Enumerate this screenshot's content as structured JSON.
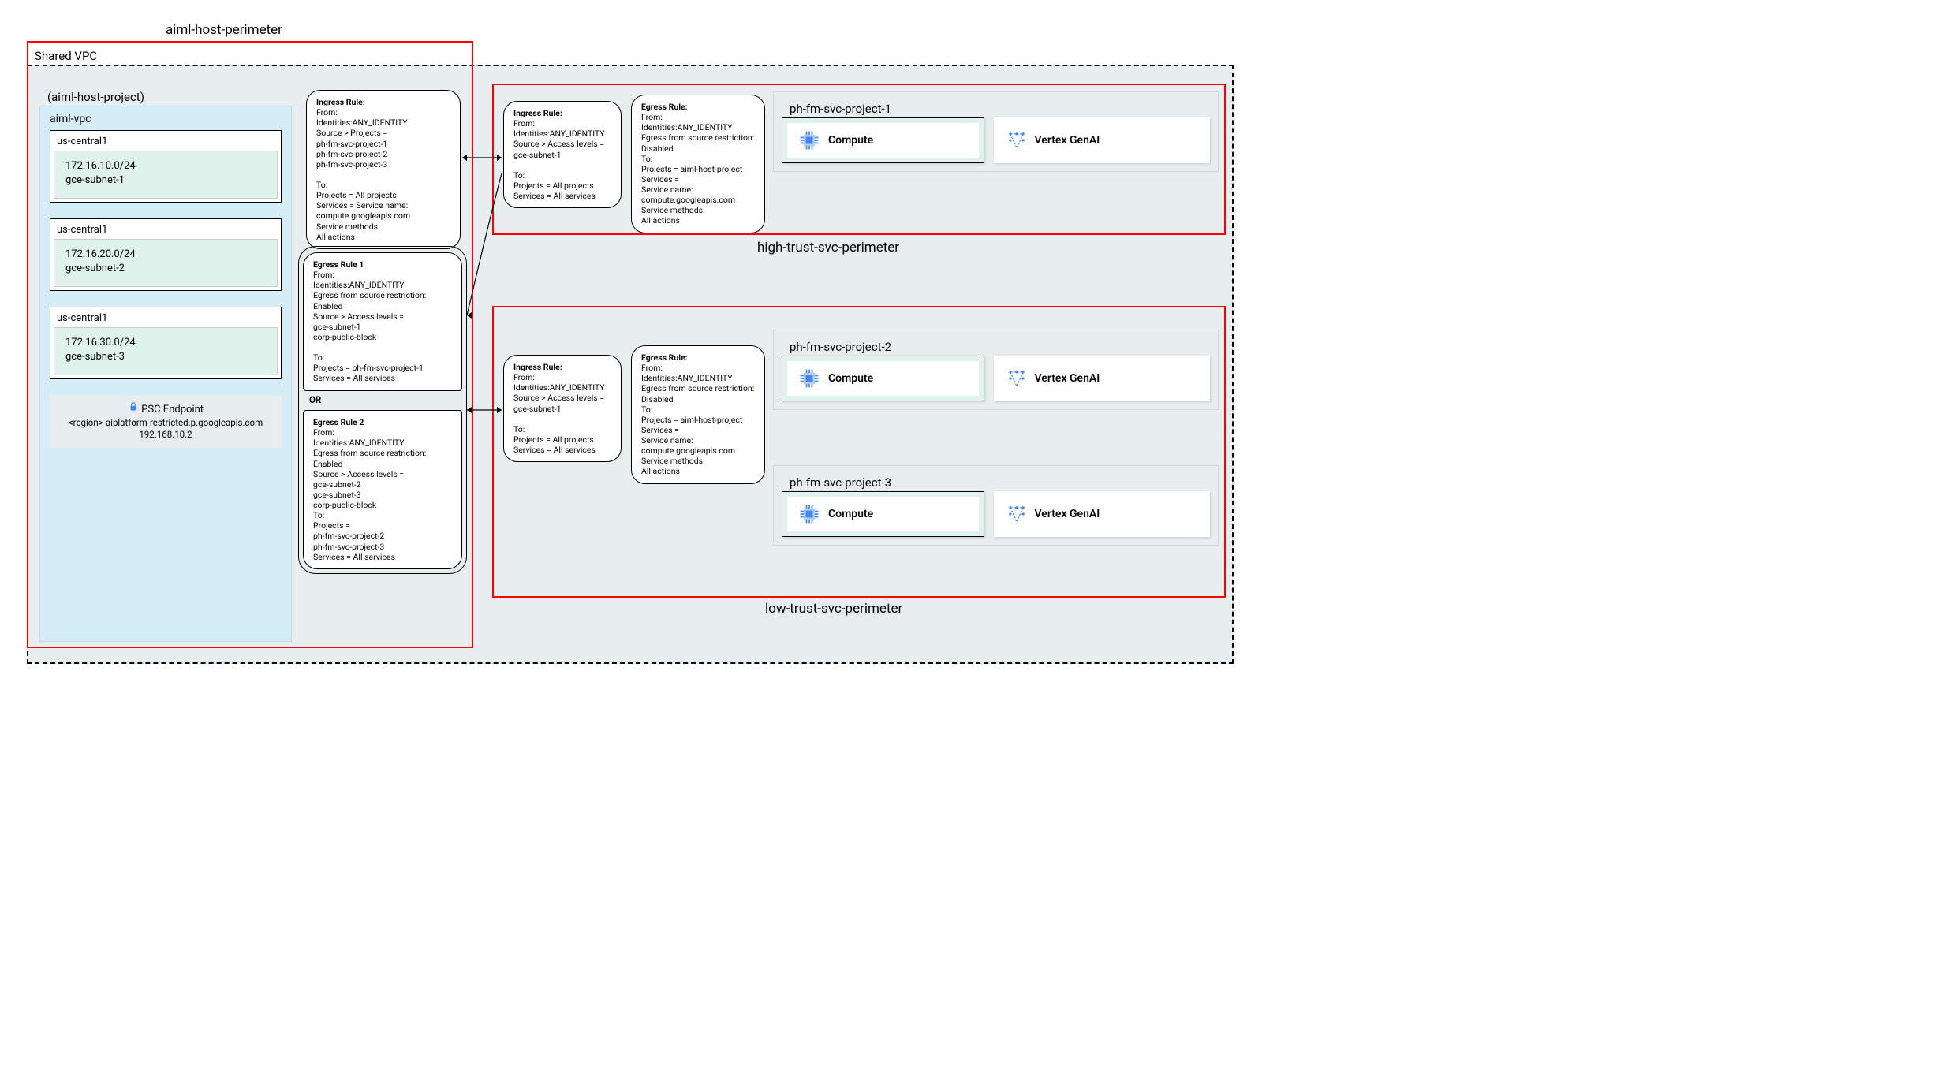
{
  "labels": {
    "aiml_host_perimeter": "aiml-host-perimeter",
    "high_trust_perimeter": "high-trust-svc-perimeter",
    "low_trust_perimeter": "low-trust-svc-perimeter",
    "shared_vpc": "Shared VPC",
    "aiml_host_project": "(aiml-host-project)",
    "aiml_vpc": "aiml-vpc",
    "compute": "Compute",
    "vertex": "Vertex GenAI",
    "psc_title": "PSC Endpoint",
    "psc_host": "<region>-aiplatform-restricted.p.googleapis.com",
    "psc_ip": "192.168.10.2",
    "or": "OR"
  },
  "subnets": [
    {
      "region": "us-central1",
      "cidr": "172.16.10.0/24",
      "name": "gce-subnet-1"
    },
    {
      "region": "us-central1",
      "cidr": "172.16.20.0/24",
      "name": "gce-subnet-2"
    },
    {
      "region": "us-central1",
      "cidr": "172.16.30.0/24",
      "name": "gce-subnet-3"
    }
  ],
  "svc_projects": {
    "p1": "ph-fm-svc-project-1",
    "p2": "ph-fm-svc-project-2",
    "p3": "ph-fm-svc-project-3"
  },
  "rules": {
    "host_ingress": "Ingress Rule:\nFrom:\nIdentities:ANY_IDENTITY\nSource > Projects =\nph-fm-svc-project-1\nph-fm-svc-project-2\nph-fm-svc-project-3\n\nTo:\nProjects = All projects\nServices = Service name:\ncompute.googleapis.com\nService methods:\nAll actions",
    "host_egress1": "Egress Rule 1\nFrom:\nIdentities:ANY_IDENTITY\nEgress from source restriction:\nEnabled\nSource > Access levels =\ngce-subnet-1\ncorp-public-block\n\nTo:\nProjects = ph-fm-svc-project-1\nServices = All services",
    "host_egress2": "Egress Rule 2\nFrom:\nIdentities:ANY_IDENTITY\nEgress from source restriction:\nEnabled\nSource > Access levels =\ngce-subnet-2\ngce-subnet-3\ncorp-public-block\nTo:\nProjects =\nph-fm-svc-project-2\nph-fm-svc-project-3\nServices = All services",
    "svc_ingress": "Ingress Rule:\nFrom:\nIdentities:ANY_IDENTITY\nSource > Access levels =\ngce-subnet-1\n\nTo:\nProjects = All projects\nServices = All services",
    "svc_egress1": "Egress Rule:\nFrom:\nIdentities:ANY_IDENTITY\nEgress from source restriction:\nDisabled\nTo:\nProjects = aiml-host-project\nServices =\nService name:\ncompute.googleapis.com\nService methods:\nAll actions",
    "svc_ingress2": "Ingress Rule:\nFrom:\nIdentities:ANY_IDENTITY\nSource > Access levels =\ngce-subnet-1\n\nTo:\nProjects = All projects\nServices = All services",
    "svc_egress2": "Egress Rule:\nFrom:\nIdentities:ANY_IDENTITY\nEgress from source restriction:\nDisabled\nTo:\nProjects = aiml-host-project\nServices =\nService name:\ncompute.googleapis.com\nService methods:\nAll actions"
  },
  "colors": {
    "compute_icon": "#4285f4",
    "vertex_icon": "#4285f4"
  }
}
